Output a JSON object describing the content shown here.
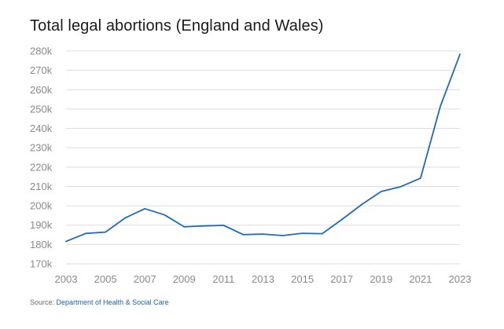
{
  "header": {
    "title": "Total legal abortions (England and Wales)"
  },
  "footer": {
    "source_prefix": "Source: ",
    "source_link": "Department of Health & Social Care"
  },
  "colors": {
    "line": "#1f6bb5",
    "grid": "#dddddd",
    "tick": "#8a8a8a",
    "link": "#1763b5"
  },
  "chart_data": {
    "type": "line",
    "title": "Total legal abortions (England and Wales)",
    "xlabel": "",
    "ylabel": "",
    "xlim": [
      2003,
      2023
    ],
    "ylim": [
      170000,
      280000
    ],
    "grid": true,
    "legend": "none",
    "x_ticks": [
      2003,
      2005,
      2007,
      2009,
      2011,
      2013,
      2015,
      2017,
      2019,
      2021,
      2023
    ],
    "y_ticks": [
      170000,
      180000,
      190000,
      200000,
      210000,
      220000,
      230000,
      240000,
      250000,
      260000,
      270000,
      280000
    ],
    "y_tick_labels": [
      "170k",
      "180k",
      "190k",
      "200k",
      "210k",
      "220k",
      "230k",
      "240k",
      "250k",
      "260k",
      "270k",
      "280k"
    ],
    "x": [
      2003,
      2004,
      2005,
      2006,
      2007,
      2008,
      2009,
      2010,
      2011,
      2012,
      2013,
      2014,
      2015,
      2016,
      2017,
      2018,
      2019,
      2020,
      2021,
      2022,
      2023
    ],
    "series": [
      {
        "values": [
          181600,
          185700,
          186400,
          193700,
          198500,
          195300,
          189100,
          189600,
          189900,
          185100,
          185400,
          184600,
          185800,
          185600,
          192900,
          200600,
          207400,
          209900,
          214300,
          251400,
          278300
        ]
      }
    ]
  }
}
